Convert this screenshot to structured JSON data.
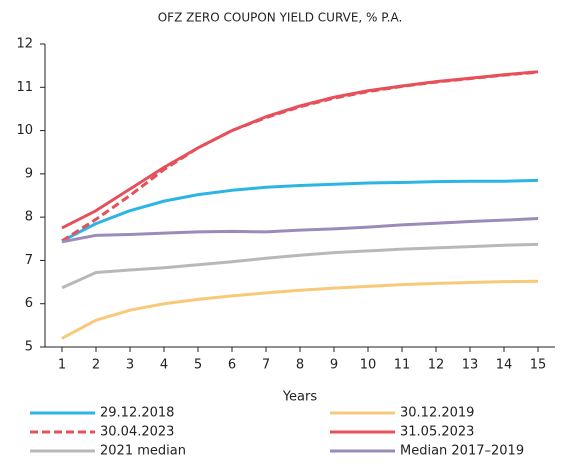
{
  "chart_data": {
    "type": "line",
    "title": "OFZ ZERO COUPON YIELD CURVE, % P.A.",
    "xlabel": "Years",
    "x": [
      1,
      2,
      3,
      4,
      5,
      6,
      7,
      8,
      9,
      10,
      11,
      12,
      13,
      14,
      15
    ],
    "xlim": [
      0.5,
      15.5
    ],
    "xticks": [
      1,
      2,
      3,
      4,
      5,
      6,
      7,
      8,
      9,
      10,
      11,
      12,
      13,
      14,
      15
    ],
    "ylim": [
      5,
      12
    ],
    "yticks": [
      5,
      6,
      7,
      8,
      9,
      10,
      11,
      12
    ],
    "grid": false,
    "series": [
      {
        "name": "29.12.2018",
        "color": "#2bb5e5",
        "dashed": false,
        "values": [
          7.45,
          7.85,
          8.15,
          8.37,
          8.52,
          8.62,
          8.69,
          8.73,
          8.76,
          8.79,
          8.8,
          8.82,
          8.83,
          8.83,
          8.85
        ]
      },
      {
        "name": "30.12.2019",
        "color": "#f9c97a",
        "dashed": false,
        "values": [
          5.2,
          5.62,
          5.85,
          6.0,
          6.1,
          6.18,
          6.25,
          6.31,
          6.36,
          6.4,
          6.44,
          6.47,
          6.49,
          6.51,
          6.52
        ]
      },
      {
        "name": "30.04.2023",
        "color": "#e5505a",
        "dashed": true,
        "values": [
          7.45,
          7.95,
          8.5,
          9.1,
          9.6,
          10.0,
          10.3,
          10.55,
          10.75,
          10.9,
          11.02,
          11.12,
          11.2,
          11.28,
          11.35
        ]
      },
      {
        "name": "31.05.2023",
        "color": "#e5505a",
        "dashed": false,
        "values": [
          7.75,
          8.15,
          8.65,
          9.15,
          9.6,
          10.0,
          10.32,
          10.57,
          10.77,
          10.92,
          11.03,
          11.13,
          11.21,
          11.29,
          11.36
        ]
      },
      {
        "name": "2021 median",
        "color": "#b8b8b8",
        "dashed": false,
        "values": [
          6.37,
          6.72,
          6.78,
          6.83,
          6.9,
          6.97,
          7.05,
          7.12,
          7.18,
          7.22,
          7.26,
          7.29,
          7.32,
          7.35,
          7.37
        ]
      },
      {
        "name": "Median 2017–2019",
        "color": "#9b8bb8",
        "dashed": false,
        "values": [
          7.43,
          7.58,
          7.6,
          7.63,
          7.66,
          7.67,
          7.66,
          7.7,
          7.73,
          7.77,
          7.82,
          7.86,
          7.9,
          7.93,
          7.97
        ]
      }
    ]
  }
}
